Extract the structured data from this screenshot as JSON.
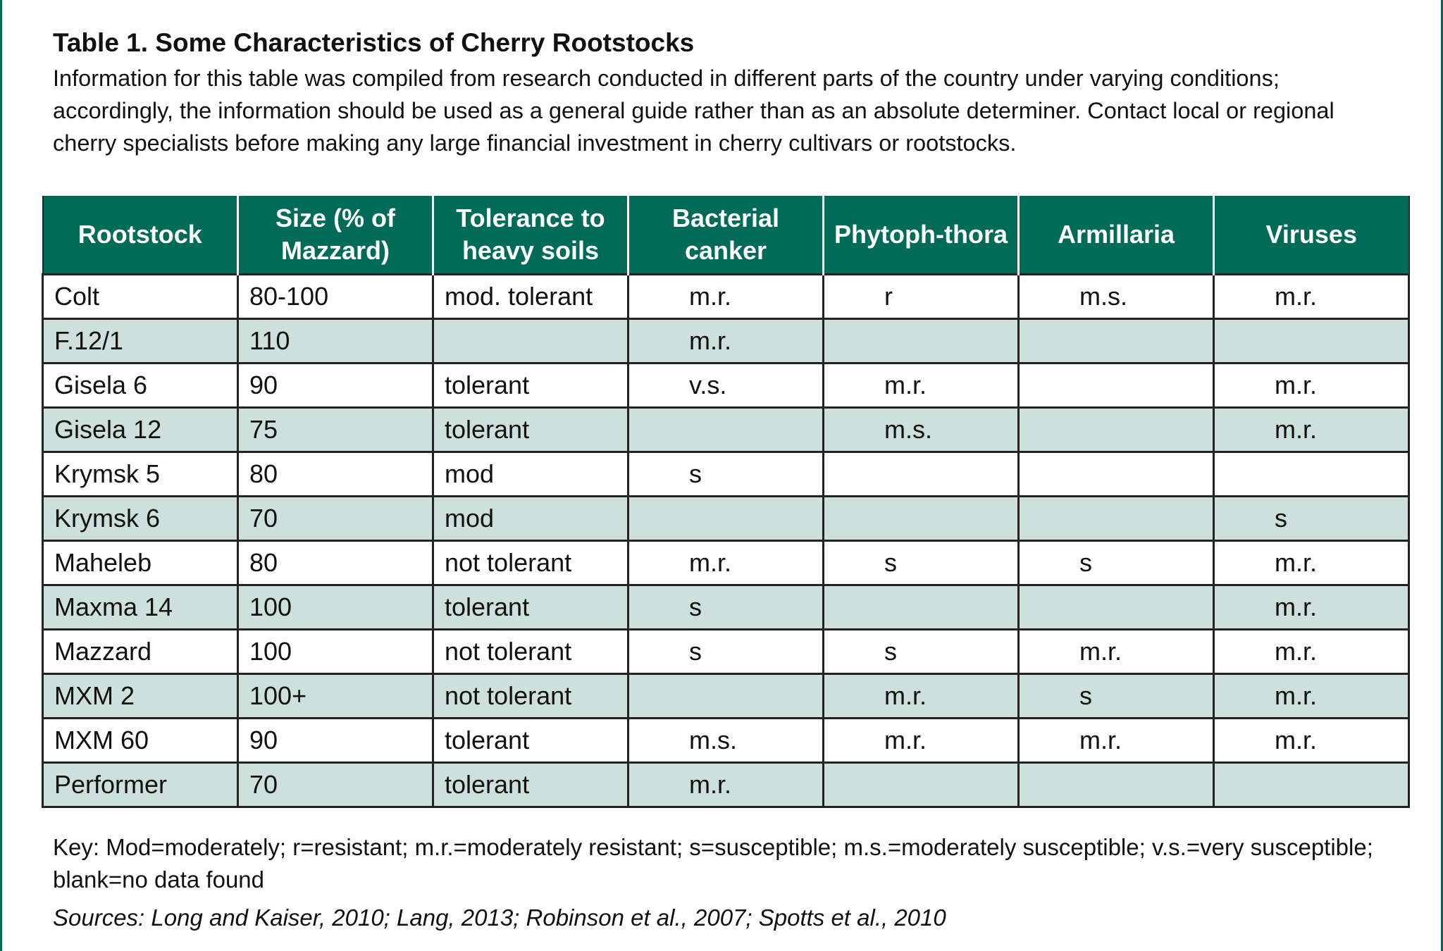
{
  "title": "Table 1. Some Characteristics of Cherry Rootstocks",
  "caption": "Information for this table was compiled from research conducted in different parts of the country under varying conditions; accordingly, the information should be used as a general guide rather than as an absolute determiner. Contact local or regional cherry specialists before making any large financial investment in cherry cultivars or rootstocks.",
  "table": {
    "header": [
      "Rootstock",
      "Size (% of Mazzard)",
      "Tolerance to heavy soils",
      "Bacterial canker",
      "Phytoph-thora",
      "Armillaria",
      "Viruses"
    ],
    "rows": [
      [
        "Colt",
        "80-100",
        "mod. tolerant",
        "m.r.",
        "r",
        "m.s.",
        "m.r."
      ],
      [
        "F.12/1",
        "110",
        null,
        "m.r.",
        null,
        null,
        null
      ],
      [
        "Gisela 6",
        "90",
        "tolerant",
        "v.s.",
        "m.r.",
        null,
        "m.r."
      ],
      [
        "Gisela 12",
        "75",
        "tolerant",
        null,
        "m.s.",
        null,
        "m.r."
      ],
      [
        "Krymsk 5",
        "80",
        "mod",
        "s",
        null,
        null,
        null
      ],
      [
        "Krymsk 6",
        "70",
        "mod",
        null,
        null,
        null,
        "s"
      ],
      [
        "Maheleb",
        "80",
        "not tolerant",
        "m.r.",
        "s",
        "s",
        "m.r."
      ],
      [
        "Maxma 14",
        "100",
        "tolerant",
        "s",
        null,
        null,
        "m.r."
      ],
      [
        "Mazzard",
        "100",
        "not tolerant",
        "s",
        "s",
        "m.r.",
        "m.r."
      ],
      [
        "MXM 2",
        "100+",
        "not tolerant",
        null,
        "m.r.",
        "s",
        "m.r."
      ],
      [
        "MXM 60",
        "90",
        "tolerant",
        "m.s.",
        "m.r.",
        "m.r.",
        "m.r."
      ],
      [
        "Performer",
        "70",
        "tolerant",
        "m.r.",
        null,
        null,
        null
      ]
    ]
  },
  "key": "Key: Mod=moderately; r=resistant; m.r.=moderately resistant; s=susceptible; m.s.=moderately susceptible; v.s.=very susceptible; blank=no data found",
  "sources": "Sources: Long and Kaiser, 2010; Lang, 2013; Robinson et al., 2007; Spotts et al., 2010"
}
